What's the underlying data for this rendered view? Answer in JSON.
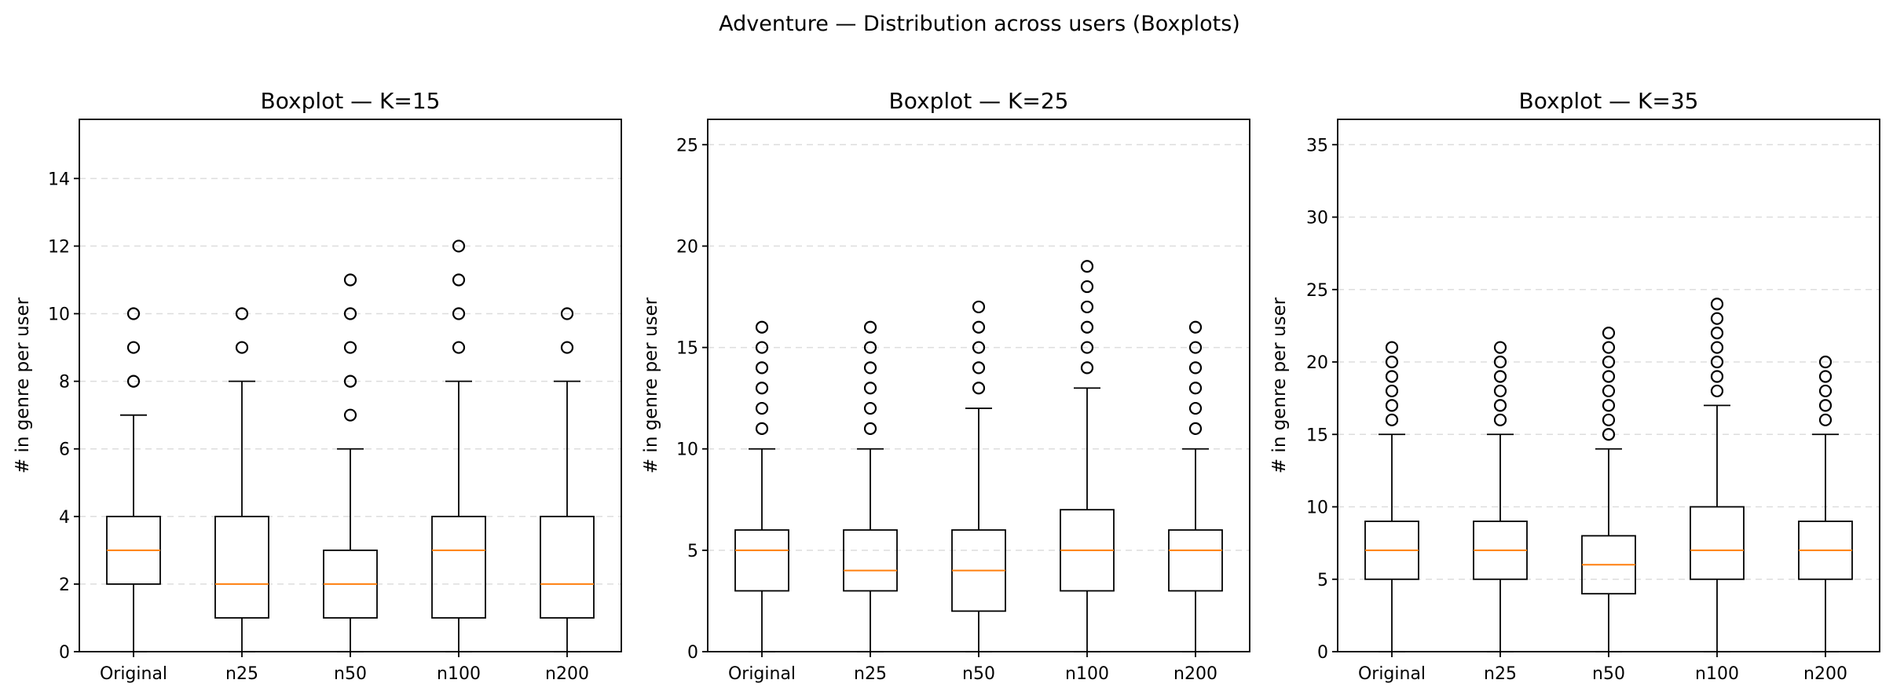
{
  "figure": {
    "title": "Adventure — Distribution across users (Boxplots)"
  },
  "chart_data": [
    {
      "type": "boxplot",
      "title": "Boxplot — K=15",
      "ylabel": "# in genre per user",
      "xlabel": "",
      "ylim": [
        0,
        15.75
      ],
      "yticks": [
        0,
        2,
        4,
        6,
        8,
        10,
        12,
        14
      ],
      "grid": "y-dashed",
      "categories": [
        "Original",
        "n25",
        "n50",
        "n100",
        "n200"
      ],
      "boxes": [
        {
          "category": "Original",
          "whislo": 0,
          "q1": 2,
          "median": 3,
          "q3": 4,
          "whishi": 7,
          "fliers": [
            8,
            9,
            10
          ]
        },
        {
          "category": "n25",
          "whislo": 0,
          "q1": 1,
          "median": 2,
          "q3": 4,
          "whishi": 8,
          "fliers": [
            9,
            10
          ]
        },
        {
          "category": "n50",
          "whislo": 0,
          "q1": 1,
          "median": 2,
          "q3": 3,
          "whishi": 6,
          "fliers": [
            7,
            8,
            9,
            10,
            11
          ]
        },
        {
          "category": "n100",
          "whislo": 0,
          "q1": 1,
          "median": 3,
          "q3": 4,
          "whishi": 8,
          "fliers": [
            9,
            10,
            11,
            12
          ]
        },
        {
          "category": "n200",
          "whislo": 0,
          "q1": 1,
          "median": 2,
          "q3": 4,
          "whishi": 8,
          "fliers": [
            9,
            10
          ]
        }
      ]
    },
    {
      "type": "boxplot",
      "title": "Boxplot — K=25",
      "ylabel": "# in genre per user",
      "xlabel": "",
      "ylim": [
        0,
        26.25
      ],
      "yticks": [
        0,
        5,
        10,
        15,
        20,
        25
      ],
      "grid": "y-dashed",
      "categories": [
        "Original",
        "n25",
        "n50",
        "n100",
        "n200"
      ],
      "boxes": [
        {
          "category": "Original",
          "whislo": 0,
          "q1": 3,
          "median": 5,
          "q3": 6,
          "whishi": 10,
          "fliers": [
            11,
            12,
            13,
            14,
            15,
            16
          ]
        },
        {
          "category": "n25",
          "whislo": 0,
          "q1": 3,
          "median": 4,
          "q3": 6,
          "whishi": 10,
          "fliers": [
            11,
            12,
            13,
            14,
            15,
            16
          ]
        },
        {
          "category": "n50",
          "whislo": 0,
          "q1": 2,
          "median": 4,
          "q3": 6,
          "whishi": 12,
          "fliers": [
            13,
            14,
            15,
            16,
            17
          ]
        },
        {
          "category": "n100",
          "whislo": 0,
          "q1": 3,
          "median": 5,
          "q3": 7,
          "whishi": 13,
          "fliers": [
            14,
            15,
            16,
            17,
            18,
            19
          ]
        },
        {
          "category": "n200",
          "whislo": 0,
          "q1": 3,
          "median": 5,
          "q3": 6,
          "whishi": 10,
          "fliers": [
            11,
            12,
            13,
            14,
            15,
            16
          ]
        }
      ]
    },
    {
      "type": "boxplot",
      "title": "Boxplot — K=35",
      "ylabel": "# in genre per user",
      "xlabel": "",
      "ylim": [
        0,
        36.75
      ],
      "yticks": [
        0,
        5,
        10,
        15,
        20,
        25,
        30,
        35
      ],
      "grid": "y-dashed",
      "categories": [
        "Original",
        "n25",
        "n50",
        "n100",
        "n200"
      ],
      "boxes": [
        {
          "category": "Original",
          "whislo": 0,
          "q1": 5,
          "median": 7,
          "q3": 9,
          "whishi": 15,
          "fliers": [
            16,
            17,
            18,
            19,
            20,
            21
          ]
        },
        {
          "category": "n25",
          "whislo": 0,
          "q1": 5,
          "median": 7,
          "q3": 9,
          "whishi": 15,
          "fliers": [
            16,
            17,
            18,
            19,
            20,
            21
          ]
        },
        {
          "category": "n50",
          "whislo": 0,
          "q1": 4,
          "median": 6,
          "q3": 8,
          "whishi": 14,
          "fliers": [
            15,
            16,
            17,
            18,
            19,
            20,
            21,
            22
          ]
        },
        {
          "category": "n100",
          "whislo": 0,
          "q1": 5,
          "median": 7,
          "q3": 10,
          "whishi": 17,
          "fliers": [
            18,
            19,
            20,
            21,
            22,
            23,
            24
          ]
        },
        {
          "category": "n200",
          "whislo": 0,
          "q1": 5,
          "median": 7,
          "q3": 9,
          "whishi": 15,
          "fliers": [
            16,
            17,
            18,
            19,
            20
          ]
        }
      ]
    }
  ],
  "colors": {
    "box": "#000000",
    "median": "#ff7f0e",
    "grid": "#dddddd"
  }
}
